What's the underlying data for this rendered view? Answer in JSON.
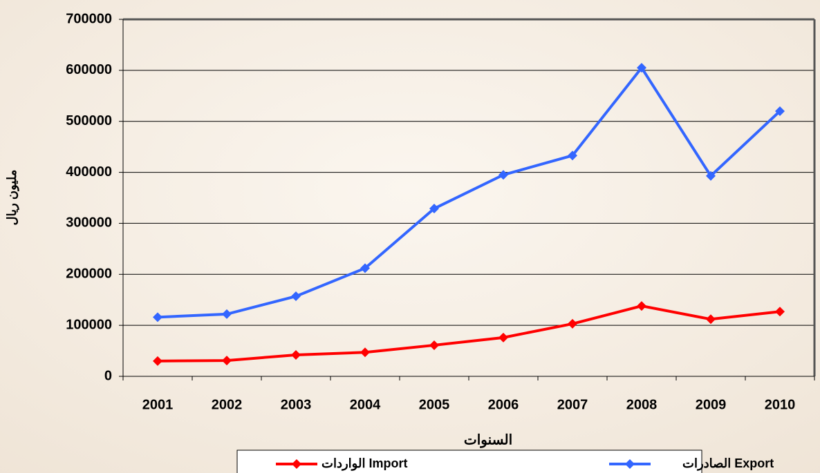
{
  "chart_data": {
    "type": "line",
    "xlabel": "السنوات",
    "ylabel": "مليون ريال",
    "categories": [
      "2001",
      "2002",
      "2003",
      "2004",
      "2005",
      "2006",
      "2007",
      "2008",
      "2009",
      "2010"
    ],
    "series": [
      {
        "name": "الواردات Import",
        "color": "#ff0000",
        "values": [
          30000,
          31000,
          42000,
          47000,
          61000,
          76000,
          103000,
          138000,
          112000,
          127000
        ]
      },
      {
        "name": "الصادرات   Export",
        "color": "#3366ff",
        "values": [
          116000,
          122000,
          157000,
          212000,
          329000,
          395000,
          433000,
          605000,
          393000,
          520000
        ]
      }
    ],
    "ylim": [
      0,
      700000
    ],
    "yticks": [
      0,
      100000,
      200000,
      300000,
      400000,
      500000,
      600000,
      700000
    ],
    "grid": true
  }
}
